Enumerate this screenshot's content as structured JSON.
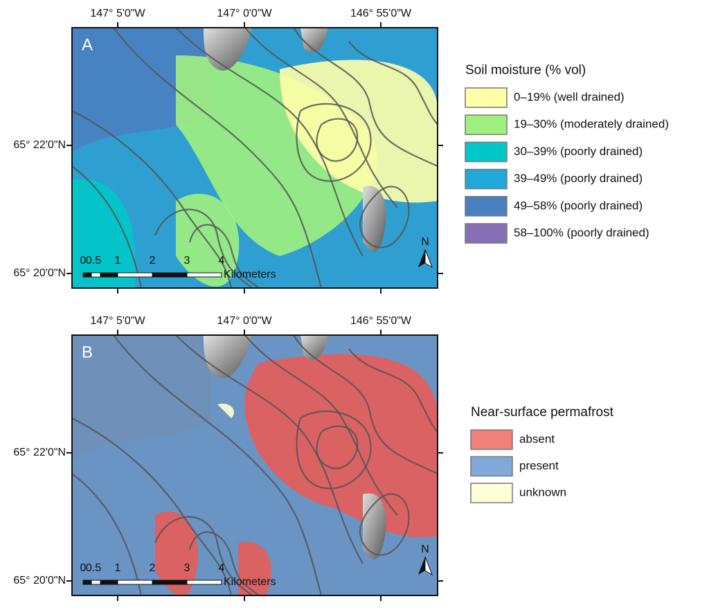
{
  "panels": [
    {
      "label": "A",
      "lon_labels": [
        "147° 5'0\"W",
        "147° 0'0\"W",
        "146° 55'0\"W"
      ],
      "lat_labels": [
        "65° 22'0\"N",
        "65° 20'0\"N"
      ],
      "scale_labels": [
        "0",
        "0.5",
        "1",
        "2",
        "3",
        "4"
      ],
      "scale_unit": "Kilometers",
      "north": "N",
      "legend": {
        "title": "Soil moisture (% vol)",
        "items": [
          {
            "label": "0–19% (well drained)",
            "color": "#ffffa8"
          },
          {
            "label": "19–30% (moderately drained)",
            "color": "#a0f080"
          },
          {
            "label": "30–39% (poorly drained)",
            "color": "#00c8c8"
          },
          {
            "label": "39–49% (poorly drained)",
            "color": "#20a8d8"
          },
          {
            "label": "49–58% (poorly drained)",
            "color": "#4a80c0"
          },
          {
            "label": "58–100% (poorly drained)",
            "color": "#8870b8"
          }
        ]
      }
    },
    {
      "label": "B",
      "lon_labels": [
        "147° 5'0\"W",
        "147° 0'0\"W",
        "146° 55'0\"W"
      ],
      "lat_labels": [
        "65° 22'0\"N",
        "65° 20'0\"N"
      ],
      "scale_labels": [
        "0",
        "0.5",
        "1",
        "2",
        "3",
        "4"
      ],
      "scale_unit": "Kilometers",
      "north": "N",
      "legend": {
        "title": "Near-surface permafrost",
        "items": [
          {
            "label": "absent",
            "color": "#f08078"
          },
          {
            "label": "present",
            "color": "#80a8d8"
          },
          {
            "label": "unknown",
            "color": "#ffffd8"
          }
        ]
      }
    }
  ]
}
